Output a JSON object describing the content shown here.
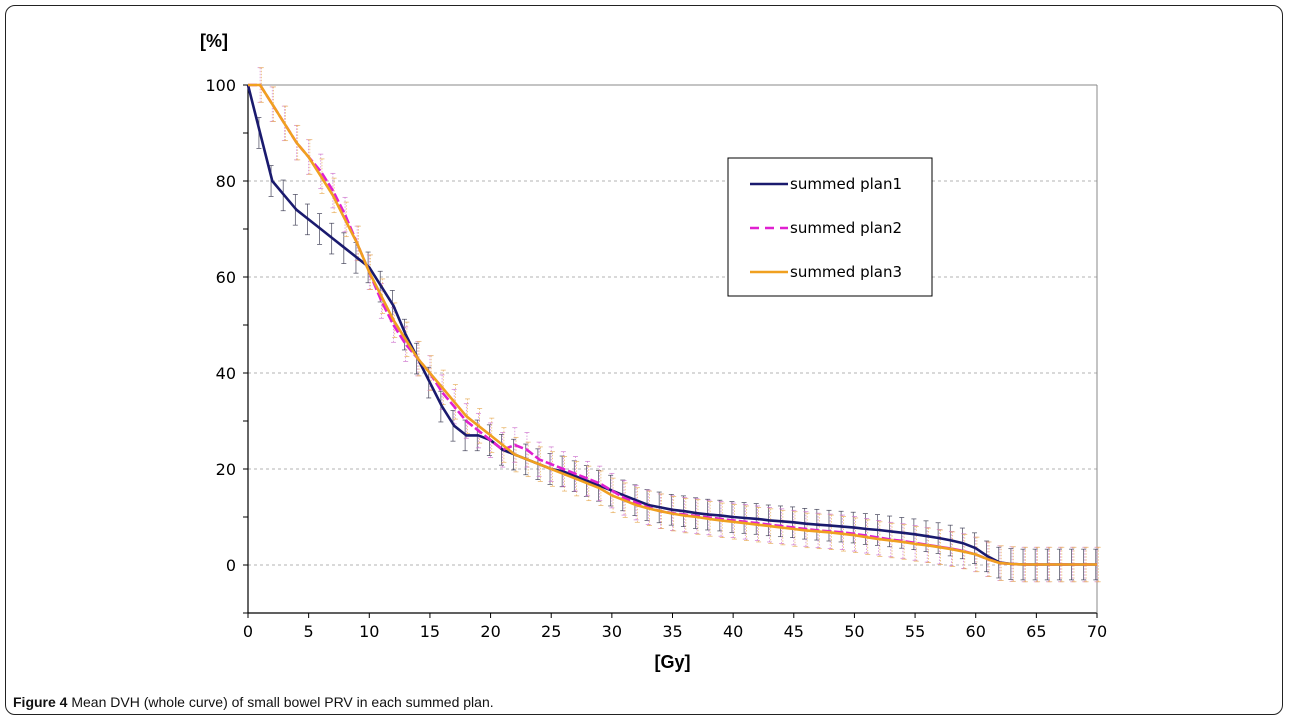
{
  "caption": {
    "label": "Figure 4",
    "text": "Mean DVH (whole curve) of small bowel PRV in each summed plan."
  },
  "chart_data": {
    "type": "line",
    "xlabel": "[Gy]",
    "ylabel": "[%]",
    "xlim": [
      0,
      70
    ],
    "ylim": [
      -10,
      100
    ],
    "xticks": [
      0,
      5,
      10,
      15,
      20,
      25,
      30,
      35,
      40,
      45,
      50,
      55,
      60,
      65,
      70
    ],
    "yticks": [
      0,
      20,
      40,
      60,
      80,
      100
    ],
    "grid": "horizontal dashed",
    "legend_position": "top-right",
    "error_bars": true,
    "series": [
      {
        "name": "summed plan1",
        "color": "#1a1a6e",
        "style": "solid",
        "points": [
          [
            0,
            100
          ],
          [
            1,
            90
          ],
          [
            2,
            80
          ],
          [
            3,
            77
          ],
          [
            4,
            74
          ],
          [
            5,
            72
          ],
          [
            6,
            70
          ],
          [
            7,
            68
          ],
          [
            8,
            66
          ],
          [
            9,
            64
          ],
          [
            10,
            62
          ],
          [
            11,
            58
          ],
          [
            12,
            54
          ],
          [
            13,
            48
          ],
          [
            14,
            43
          ],
          [
            15,
            38
          ],
          [
            16,
            33
          ],
          [
            17,
            29
          ],
          [
            18,
            27
          ],
          [
            19,
            27
          ],
          [
            20,
            26
          ],
          [
            21,
            24
          ],
          [
            22,
            23
          ],
          [
            23,
            22
          ],
          [
            24,
            21
          ],
          [
            25,
            20
          ],
          [
            26,
            19.5
          ],
          [
            27,
            18.5
          ],
          [
            28,
            17.5
          ],
          [
            29,
            16.5
          ],
          [
            30,
            15.5
          ],
          [
            31,
            14.5
          ],
          [
            32,
            13.5
          ],
          [
            33,
            12.5
          ],
          [
            34,
            12
          ],
          [
            35,
            11.5
          ],
          [
            36,
            11.2
          ],
          [
            37,
            10.8
          ],
          [
            38,
            10.5
          ],
          [
            39,
            10.3
          ],
          [
            40,
            10
          ],
          [
            41,
            9.8
          ],
          [
            42,
            9.6
          ],
          [
            43,
            9.3
          ],
          [
            44,
            9.1
          ],
          [
            45,
            8.9
          ],
          [
            46,
            8.6
          ],
          [
            47,
            8.4
          ],
          [
            48,
            8.2
          ],
          [
            49,
            8
          ],
          [
            50,
            7.8
          ],
          [
            51,
            7.5
          ],
          [
            52,
            7.3
          ],
          [
            53,
            7
          ],
          [
            54,
            6.7
          ],
          [
            55,
            6.4
          ],
          [
            56,
            6
          ],
          [
            57,
            5.6
          ],
          [
            58,
            5.1
          ],
          [
            59,
            4.5
          ],
          [
            60,
            3.5
          ],
          [
            61,
            1.8
          ],
          [
            62,
            0.5
          ],
          [
            63,
            0.2
          ],
          [
            64,
            0.1
          ],
          [
            65,
            0.1
          ],
          [
            66,
            0.1
          ],
          [
            67,
            0.1
          ],
          [
            68,
            0.1
          ],
          [
            69,
            0.1
          ],
          [
            70,
            0.1
          ]
        ]
      },
      {
        "name": "summed plan2",
        "color": "#e020d0",
        "style": "dashed",
        "points": [
          [
            0,
            100
          ],
          [
            1,
            100
          ],
          [
            2,
            96
          ],
          [
            3,
            92
          ],
          [
            4,
            88
          ],
          [
            5,
            85
          ],
          [
            6,
            82
          ],
          [
            7,
            78
          ],
          [
            8,
            73
          ],
          [
            9,
            67
          ],
          [
            10,
            61
          ],
          [
            11,
            55
          ],
          [
            12,
            50
          ],
          [
            13,
            46
          ],
          [
            14,
            43
          ],
          [
            15,
            40
          ],
          [
            16,
            36
          ],
          [
            17,
            33
          ],
          [
            18,
            30
          ],
          [
            19,
            28
          ],
          [
            20,
            26
          ],
          [
            21,
            24
          ],
          [
            22,
            25
          ],
          [
            23,
            24
          ],
          [
            24,
            22
          ],
          [
            25,
            21
          ],
          [
            26,
            20
          ],
          [
            27,
            19
          ],
          [
            28,
            18
          ],
          [
            29,
            17
          ],
          [
            30,
            15.5
          ],
          [
            31,
            14
          ],
          [
            32,
            13
          ],
          [
            33,
            12
          ],
          [
            34,
            11.2
          ],
          [
            35,
            10.8
          ],
          [
            36,
            10.5
          ],
          [
            37,
            10.2
          ],
          [
            38,
            9.9
          ],
          [
            39,
            9.6
          ],
          [
            40,
            9.3
          ],
          [
            41,
            9
          ],
          [
            42,
            8.7
          ],
          [
            43,
            8.4
          ],
          [
            44,
            8.1
          ],
          [
            45,
            7.8
          ],
          [
            46,
            7.5
          ],
          [
            47,
            7.2
          ],
          [
            48,
            7
          ],
          [
            49,
            6.8
          ],
          [
            50,
            6.5
          ],
          [
            51,
            6.1
          ],
          [
            52,
            5.7
          ],
          [
            53,
            5.3
          ],
          [
            54,
            5
          ],
          [
            55,
            4.6
          ],
          [
            56,
            4.2
          ],
          [
            57,
            3.8
          ],
          [
            58,
            3.4
          ],
          [
            59,
            2.9
          ],
          [
            60,
            2.2
          ],
          [
            61,
            1.2
          ],
          [
            62,
            0.4
          ],
          [
            63,
            0.2
          ],
          [
            64,
            0.1
          ],
          [
            65,
            0.1
          ],
          [
            66,
            0.1
          ],
          [
            67,
            0.1
          ],
          [
            68,
            0.1
          ],
          [
            69,
            0.1
          ],
          [
            70,
            0.1
          ]
        ]
      },
      {
        "name": "summed plan3",
        "color": "#f0a020",
        "style": "solid",
        "points": [
          [
            0,
            100
          ],
          [
            1,
            100
          ],
          [
            2,
            96
          ],
          [
            3,
            92
          ],
          [
            4,
            88
          ],
          [
            5,
            85
          ],
          [
            6,
            81
          ],
          [
            7,
            77
          ],
          [
            8,
            72
          ],
          [
            9,
            67
          ],
          [
            10,
            61
          ],
          [
            11,
            56
          ],
          [
            12,
            51
          ],
          [
            13,
            47
          ],
          [
            14,
            43
          ],
          [
            15,
            40
          ],
          [
            16,
            37
          ],
          [
            17,
            34
          ],
          [
            18,
            31
          ],
          [
            19,
            29
          ],
          [
            20,
            27
          ],
          [
            21,
            25
          ],
          [
            22,
            23
          ],
          [
            23,
            22
          ],
          [
            24,
            21
          ],
          [
            25,
            20
          ],
          [
            26,
            19
          ],
          [
            27,
            18
          ],
          [
            28,
            17
          ],
          [
            29,
            16
          ],
          [
            30,
            14.5
          ],
          [
            31,
            13.5
          ],
          [
            32,
            12.5
          ],
          [
            33,
            11.8
          ],
          [
            34,
            11.2
          ],
          [
            35,
            10.7
          ],
          [
            36,
            10.3
          ],
          [
            37,
            10
          ],
          [
            38,
            9.6
          ],
          [
            39,
            9.3
          ],
          [
            40,
            9
          ],
          [
            41,
            8.7
          ],
          [
            42,
            8.4
          ],
          [
            43,
            8.1
          ],
          [
            44,
            7.8
          ],
          [
            45,
            7.5
          ],
          [
            46,
            7.2
          ],
          [
            47,
            7
          ],
          [
            48,
            6.8
          ],
          [
            49,
            6.5
          ],
          [
            50,
            6.2
          ],
          [
            51,
            5.8
          ],
          [
            52,
            5.4
          ],
          [
            53,
            5.1
          ],
          [
            54,
            4.8
          ],
          [
            55,
            4.4
          ],
          [
            56,
            4.1
          ],
          [
            57,
            3.7
          ],
          [
            58,
            3.3
          ],
          [
            59,
            2.8
          ],
          [
            60,
            2.2
          ],
          [
            61,
            1.2
          ],
          [
            62,
            0.4
          ],
          [
            63,
            0.2
          ],
          [
            64,
            0.1
          ],
          [
            65,
            0.1
          ],
          [
            66,
            0.1
          ],
          [
            67,
            0.1
          ],
          [
            68,
            0.1
          ],
          [
            69,
            0.1
          ],
          [
            70,
            0.1
          ]
        ]
      }
    ]
  }
}
